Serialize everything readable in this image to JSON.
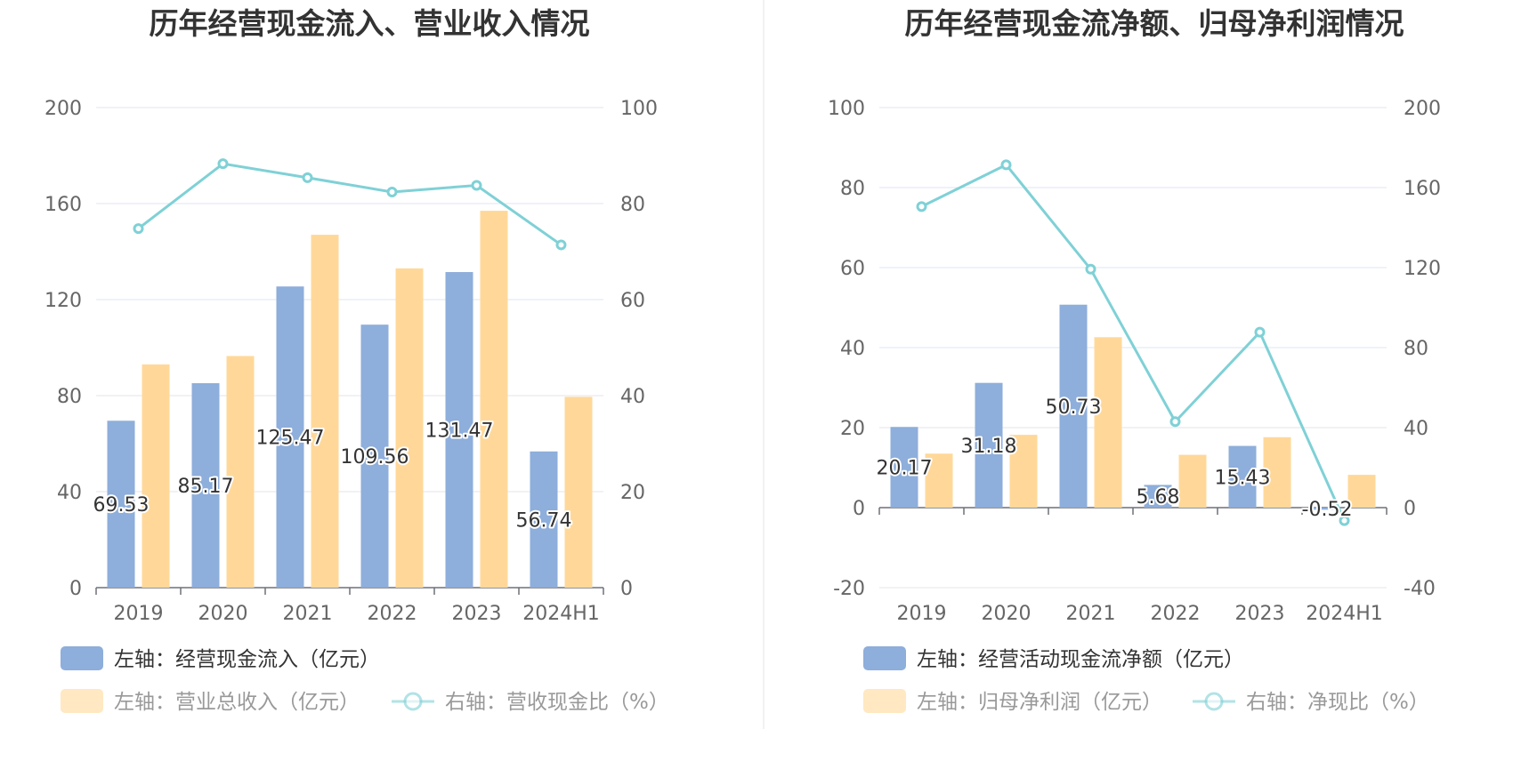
{
  "chart_data": [
    {
      "type": "bar",
      "title": "历年经营现金流入、营业收入情况",
      "categories": [
        "2019",
        "2020",
        "2021",
        "2022",
        "2023",
        "2024H1"
      ],
      "left_axis": {
        "ylim": [
          0,
          200
        ],
        "ticks": [
          0,
          40,
          80,
          120,
          160,
          200
        ]
      },
      "right_axis": {
        "ylim": [
          0,
          100
        ],
        "ticks": [
          0,
          20,
          40,
          60,
          80,
          100
        ]
      },
      "series": [
        {
          "name": "左轴：经营现金流入（亿元）",
          "type": "bar",
          "axis": "left",
          "color": "#8eaedb",
          "values": [
            69.53,
            85.17,
            125.47,
            109.56,
            131.47,
            56.74
          ],
          "labels": [
            "69.53",
            "85.17",
            "125.47",
            "109.56",
            "131.47",
            "56.74"
          ]
        },
        {
          "name": "左轴：营业总收入（亿元）",
          "type": "bar",
          "axis": "left",
          "color": "#ffd899",
          "values": [
            93.0,
            96.5,
            147.0,
            133.0,
            157.0,
            79.5
          ]
        },
        {
          "name": "右轴：营收现金比（%）",
          "type": "line",
          "axis": "right",
          "color": "#7fd1d6",
          "values": [
            74.8,
            88.3,
            85.4,
            82.4,
            83.8,
            71.4
          ]
        }
      ]
    },
    {
      "type": "bar",
      "title": "历年经营现金流净额、归母净利润情况",
      "categories": [
        "2019",
        "2020",
        "2021",
        "2022",
        "2023",
        "2024H1"
      ],
      "left_axis": {
        "ylim": [
          -20,
          100
        ],
        "ticks": [
          -20,
          0,
          20,
          40,
          60,
          80,
          100
        ]
      },
      "right_axis": {
        "ylim": [
          -40,
          200
        ],
        "ticks": [
          -40,
          0,
          40,
          80,
          120,
          160,
          200
        ]
      },
      "series": [
        {
          "name": "左轴：经营活动现金流净额（亿元）",
          "type": "bar",
          "axis": "left",
          "color": "#8eaedb",
          "values": [
            20.17,
            31.18,
            50.73,
            5.68,
            15.43,
            -0.52
          ],
          "labels": [
            "20.17",
            "31.18",
            "50.73",
            "5.68",
            "15.43",
            "-0.52"
          ]
        },
        {
          "name": "左轴：归母净利润（亿元）",
          "type": "bar",
          "axis": "left",
          "color": "#ffd899",
          "values": [
            13.5,
            18.2,
            42.6,
            13.2,
            17.6,
            8.2
          ]
        },
        {
          "name": "右轴：净现比（%）",
          "type": "line",
          "axis": "right",
          "color": "#7fd1d6",
          "values": [
            150.5,
            171.4,
            119.2,
            43.0,
            87.7,
            -6.5
          ]
        }
      ]
    }
  ]
}
